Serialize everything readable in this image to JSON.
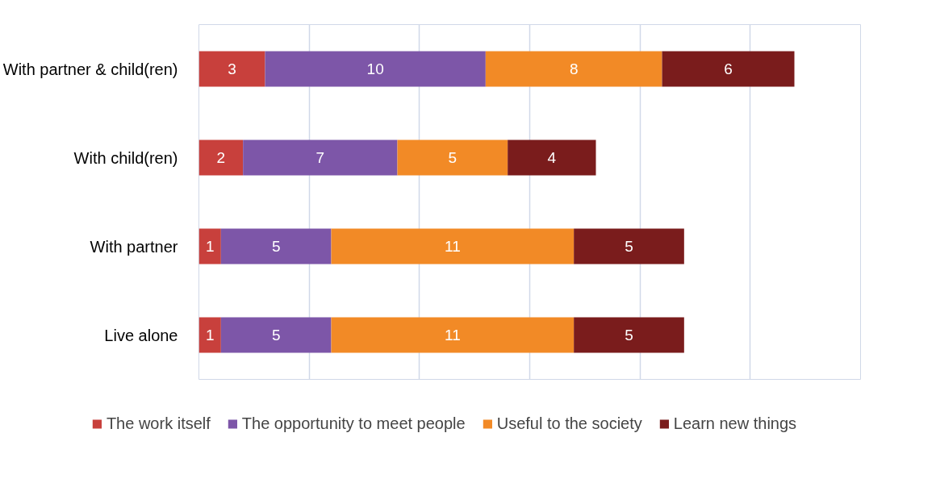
{
  "chart_data": {
    "type": "bar",
    "orientation": "horizontal",
    "stacked": true,
    "categories": [
      "With partner & child(ren)",
      "With child(ren)",
      "With partner",
      "Live alone"
    ],
    "series": [
      {
        "name": "The work itself",
        "color": "#c8403c",
        "values": [
          3,
          2,
          1,
          1
        ]
      },
      {
        "name": "The opportunity to meet people",
        "color": "#7d56a8",
        "values": [
          10,
          7,
          5,
          5
        ]
      },
      {
        "name": "Useful to the society",
        "color": "#f28a26",
        "values": [
          8,
          5,
          11,
          11
        ]
      },
      {
        "name": "Learn new things",
        "color": "#7a1c1c",
        "values": [
          6,
          4,
          5,
          5
        ]
      }
    ],
    "xlim": [
      0,
      30
    ],
    "xticks": [
      {
        "value": 0,
        "label": null
      },
      {
        "value": 5,
        "label": null
      },
      {
        "value": 10,
        "label": null
      },
      {
        "value": 15,
        "label": null
      },
      {
        "value": 20,
        "label": null
      },
      {
        "value": 25,
        "label": null
      },
      {
        "value": 30,
        "label": null
      }
    ],
    "tick_labels": "y",
    "grid": "x",
    "legend": "bottom",
    "data_labels": true
  }
}
